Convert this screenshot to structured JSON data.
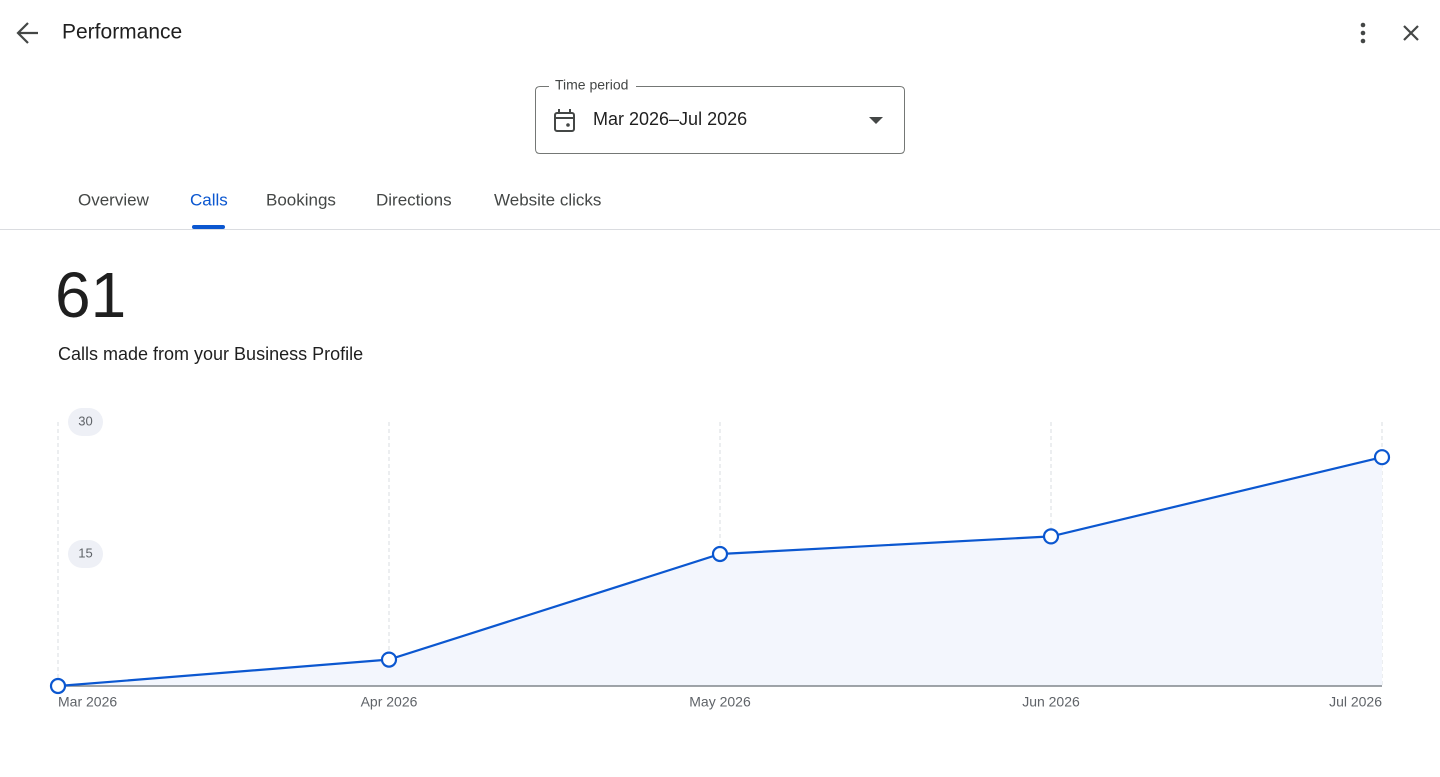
{
  "header": {
    "title": "Performance"
  },
  "time_period": {
    "label": "Time period",
    "value": "Mar 2026–Jul 2026"
  },
  "tabs": [
    "Overview",
    "Calls",
    "Bookings",
    "Directions",
    "Website clicks"
  ],
  "summary": {
    "total": 61,
    "description": "Calls made from your Business Profile"
  },
  "chart_data": {
    "type": "line",
    "categories": [
      "Mar 2026",
      "Apr 2026",
      "May 2026",
      "Jun 2026",
      "Jul 2026"
    ],
    "values": [
      0,
      3,
      15,
      17,
      26
    ],
    "color": "#0b57d0",
    "ylim": [
      0,
      30
    ],
    "yticks": [
      15,
      30
    ],
    "grid": true
  }
}
